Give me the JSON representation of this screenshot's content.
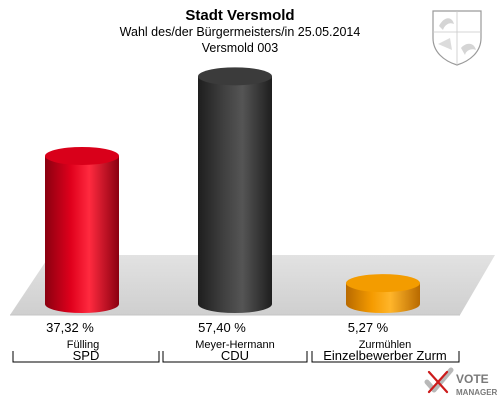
{
  "chart_data": {
    "type": "bar",
    "title": "Stadt Versmold",
    "subtitle": "Wahl des/der Bürgermeisters/in  25.05.2014",
    "district": "Versmold 003",
    "categories": [
      "Fülling",
      "Meyer-Hermann",
      "Zurmühlen"
    ],
    "parties": [
      "SPD",
      "CDU",
      "Einzelbewerber  Zurm"
    ],
    "values": [
      37.32,
      57.4,
      5.27
    ],
    "value_labels": [
      "37,32 %",
      "57,40 %",
      "5,27 %"
    ],
    "colors": [
      "#d9001a",
      "#3b3b3b",
      "#f39c00"
    ],
    "ylim": [
      0,
      60
    ]
  },
  "logo": {
    "text_line1": "VOTE",
    "text_line2": "MANAGER"
  }
}
